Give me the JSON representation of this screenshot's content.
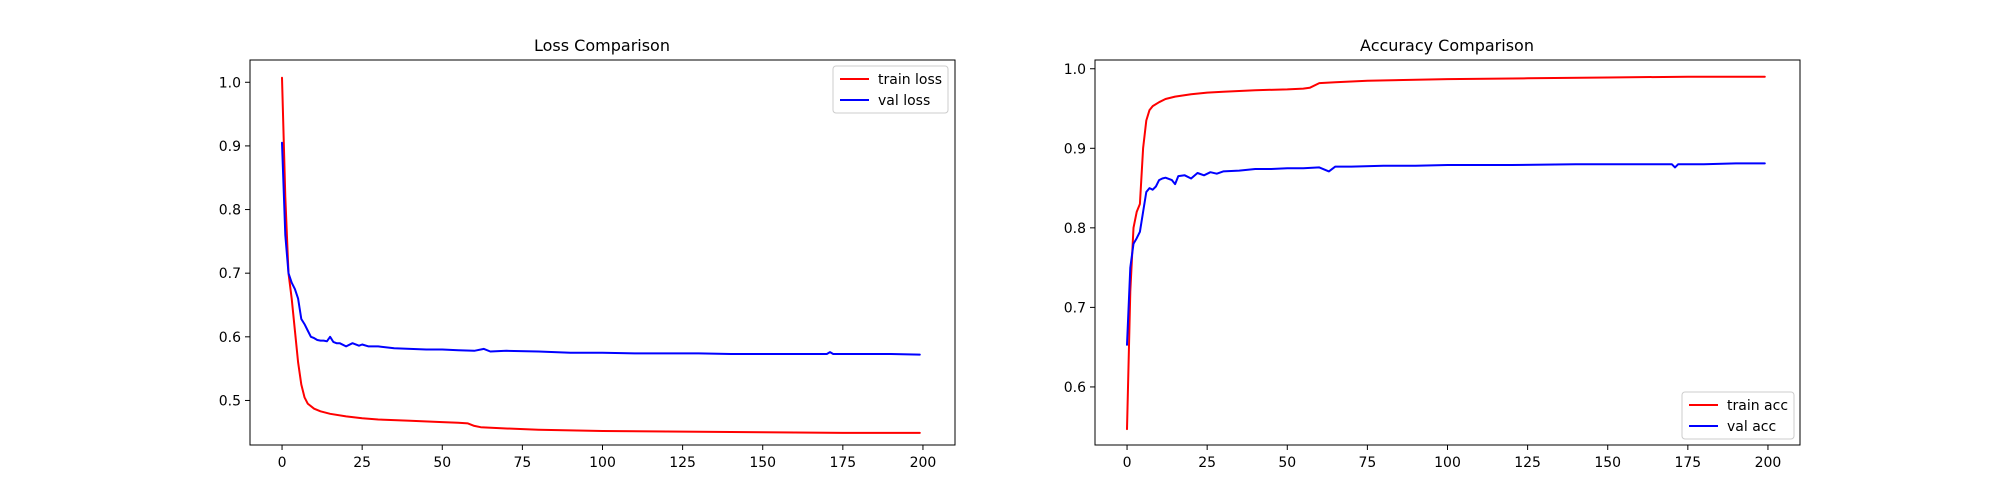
{
  "chart_data": [
    {
      "type": "line",
      "title": "Loss Comparison",
      "xlabel": "",
      "ylabel": "",
      "xlim": [
        -10,
        210
      ],
      "ylim": [
        0.43,
        1.035
      ],
      "xticks": [
        0,
        25,
        50,
        75,
        100,
        125,
        150,
        175,
        200
      ],
      "yticks": [
        0.5,
        0.6,
        0.7,
        0.8,
        0.9,
        1.0
      ],
      "ytick_labels": [
        "0.5",
        "0.6",
        "0.7",
        "0.8",
        "0.9",
        "1.0"
      ],
      "grid": false,
      "legend_position": "top-right",
      "series": [
        {
          "name": "train loss",
          "color": "#ff0000",
          "x": [
            0,
            1,
            2,
            3,
            4,
            5,
            6,
            7,
            8,
            10,
            12,
            15,
            20,
            25,
            30,
            40,
            50,
            55,
            58,
            60,
            62,
            70,
            80,
            90,
            100,
            125,
            150,
            175,
            199
          ],
          "y": [
            1.007,
            0.82,
            0.7,
            0.66,
            0.61,
            0.56,
            0.525,
            0.505,
            0.495,
            0.487,
            0.483,
            0.479,
            0.475,
            0.472,
            0.47,
            0.468,
            0.466,
            0.465,
            0.464,
            0.46,
            0.458,
            0.456,
            0.454,
            0.453,
            0.452,
            0.451,
            0.45,
            0.449,
            0.449
          ]
        },
        {
          "name": "val loss",
          "color": "#0000ff",
          "x": [
            0,
            1,
            2,
            3,
            4,
            5,
            6,
            7,
            8,
            9,
            10,
            11,
            12,
            13,
            14,
            15,
            16,
            17,
            18,
            20,
            22,
            24,
            25,
            27,
            30,
            35,
            40,
            45,
            50,
            55,
            60,
            63,
            65,
            70,
            80,
            90,
            100,
            110,
            120,
            130,
            140,
            150,
            160,
            170,
            171,
            172,
            180,
            190,
            199
          ],
          "y": [
            0.905,
            0.76,
            0.7,
            0.685,
            0.675,
            0.66,
            0.628,
            0.62,
            0.61,
            0.6,
            0.598,
            0.595,
            0.594,
            0.594,
            0.593,
            0.6,
            0.592,
            0.59,
            0.59,
            0.585,
            0.59,
            0.586,
            0.588,
            0.585,
            0.585,
            0.582,
            0.581,
            0.58,
            0.58,
            0.579,
            0.578,
            0.581,
            0.577,
            0.578,
            0.577,
            0.575,
            0.575,
            0.574,
            0.574,
            0.574,
            0.573,
            0.573,
            0.573,
            0.573,
            0.576,
            0.573,
            0.573,
            0.573,
            0.572
          ]
        }
      ]
    },
    {
      "type": "line",
      "title": "Accuracy Comparison",
      "xlabel": "",
      "ylabel": "",
      "xlim": [
        -10,
        210
      ],
      "ylim": [
        0.527,
        1.011
      ],
      "xticks": [
        0,
        25,
        50,
        75,
        100,
        125,
        150,
        175,
        200
      ],
      "yticks": [
        0.6,
        0.7,
        0.8,
        0.9,
        1.0
      ],
      "ytick_labels": [
        "0.6",
        "0.7",
        "0.8",
        "0.9",
        "1.0"
      ],
      "grid": false,
      "legend_position": "bottom-right",
      "series": [
        {
          "name": "train acc",
          "color": "#ff0000",
          "x": [
            0,
            1,
            2,
            3,
            4,
            5,
            6,
            7,
            8,
            10,
            12,
            15,
            20,
            25,
            30,
            40,
            50,
            55,
            57,
            60,
            65,
            75,
            100,
            125,
            150,
            175,
            199
          ],
          "y": [
            0.547,
            0.72,
            0.8,
            0.82,
            0.83,
            0.9,
            0.935,
            0.948,
            0.953,
            0.958,
            0.962,
            0.965,
            0.968,
            0.97,
            0.971,
            0.973,
            0.974,
            0.975,
            0.976,
            0.982,
            0.983,
            0.985,
            0.987,
            0.988,
            0.989,
            0.99,
            0.99
          ]
        },
        {
          "name": "val acc",
          "color": "#0000ff",
          "x": [
            0,
            1,
            2,
            3,
            4,
            5,
            6,
            7,
            8,
            9,
            10,
            11,
            12,
            14,
            15,
            16,
            18,
            20,
            22,
            24,
            26,
            28,
            30,
            35,
            40,
            45,
            50,
            55,
            60,
            63,
            65,
            70,
            80,
            90,
            100,
            120,
            140,
            160,
            170,
            171,
            172,
            180,
            190,
            199
          ],
          "y": [
            0.653,
            0.75,
            0.78,
            0.787,
            0.795,
            0.82,
            0.845,
            0.85,
            0.848,
            0.852,
            0.86,
            0.862,
            0.863,
            0.86,
            0.855,
            0.865,
            0.866,
            0.862,
            0.869,
            0.866,
            0.87,
            0.868,
            0.871,
            0.872,
            0.874,
            0.874,
            0.875,
            0.875,
            0.876,
            0.871,
            0.877,
            0.877,
            0.878,
            0.878,
            0.879,
            0.879,
            0.88,
            0.88,
            0.88,
            0.876,
            0.88,
            0.88,
            0.881,
            0.881
          ]
        }
      ]
    }
  ]
}
